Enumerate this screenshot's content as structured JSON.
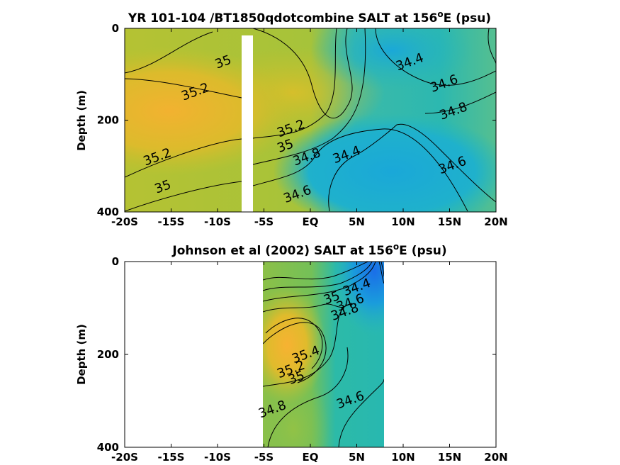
{
  "chart_data": [
    {
      "type": "heatmap",
      "title_main": "YR 101-104 /BT1850qdotcombine SALT at 156",
      "title_sup": "o",
      "title_tail": "E (psu)",
      "ylabel": "Depth (m)",
      "xlabel": "",
      "x_ticks": [
        "-20S",
        "-15S",
        "-10S",
        "-5S",
        "EQ",
        "5N",
        "10N",
        "15N",
        "20N"
      ],
      "x_tick_values": [
        -20,
        -15,
        -10,
        -5,
        0,
        5,
        10,
        15,
        20
      ],
      "xlim": [
        -20,
        20
      ],
      "y_ticks": [
        "0",
        "200",
        "400"
      ],
      "y_tick_values": [
        0,
        200,
        400
      ],
      "ylim": [
        0,
        400
      ],
      "y_reversed": true,
      "grid": false,
      "no_data_band_x": [
        -7.4,
        -6.2
      ],
      "contour_labels": [
        {
          "text": "35",
          "x": -9.4,
          "y": 73
        },
        {
          "text": "35.2",
          "x": -12.4,
          "y": 138
        },
        {
          "text": "35.2",
          "x": -16.5,
          "y": 280
        },
        {
          "text": "35",
          "x": -15.9,
          "y": 345
        },
        {
          "text": "35.2",
          "x": -2.1,
          "y": 218
        },
        {
          "text": "35",
          "x": -2.7,
          "y": 256
        },
        {
          "text": "34.8",
          "x": -0.4,
          "y": 280
        },
        {
          "text": "34.4",
          "x": 3.9,
          "y": 275
        },
        {
          "text": "34.6",
          "x": -1.4,
          "y": 361
        },
        {
          "text": "34.4",
          "x": 10.7,
          "y": 73
        },
        {
          "text": "34.6",
          "x": 14.4,
          "y": 120
        },
        {
          "text": "34.8",
          "x": 15.4,
          "y": 180
        },
        {
          "text": "34.6",
          "x": 15.3,
          "y": 298
        }
      ],
      "salinity_range_psu": [
        34.2,
        35.5
      ]
    },
    {
      "type": "heatmap",
      "title_main": "Johnson et al (2002) SALT at 156",
      "title_sup": "o",
      "title_tail": "E (psu)",
      "ylabel": "Depth (m)",
      "xlabel": "",
      "x_ticks": [
        "-20S",
        "-15S",
        "-10S",
        "-5S",
        "EQ",
        "5N",
        "10N",
        "15N",
        "20N"
      ],
      "x_tick_values": [
        -20,
        -15,
        -10,
        -5,
        0,
        5,
        10,
        15,
        20
      ],
      "xlim": [
        -20,
        20
      ],
      "y_ticks": [
        "0",
        "200",
        "400"
      ],
      "y_tick_values": [
        0,
        200,
        400
      ],
      "ylim": [
        0,
        400
      ],
      "y_reversed": true,
      "grid": false,
      "data_x_range": [
        -5,
        8
      ],
      "contour_labels": [
        {
          "text": "35.4",
          "x": -0.5,
          "y": 200
        },
        {
          "text": "35.2",
          "x": -2.1,
          "y": 232
        },
        {
          "text": "35",
          "x": -1.5,
          "y": 250
        },
        {
          "text": "34.8",
          "x": -4.1,
          "y": 318
        },
        {
          "text": "34.4",
          "x": 5.0,
          "y": 55
        },
        {
          "text": "34.6",
          "x": 4.3,
          "y": 88
        },
        {
          "text": "34.8",
          "x": 3.7,
          "y": 108
        },
        {
          "text": "35",
          "x": 2.3,
          "y": 78
        },
        {
          "text": "34.6",
          "x": 4.3,
          "y": 298
        }
      ],
      "salinity_range_psu": [
        34.2,
        35.5
      ]
    }
  ]
}
